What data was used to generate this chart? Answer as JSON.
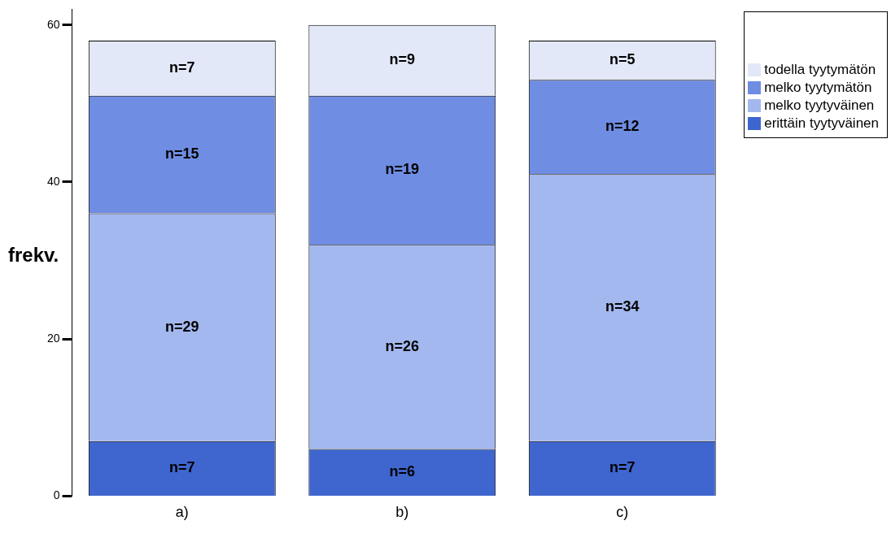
{
  "chart_data": {
    "type": "bar",
    "stacked": true,
    "ylabel": "frekv.",
    "categories": [
      "a)",
      "b)",
      "c)"
    ],
    "series": [
      {
        "name": "erittäin tyytyväinen",
        "color": "#3f66cf",
        "values": [
          7,
          6,
          7
        ],
        "value_labels": [
          "n=7",
          "n=6",
          "n=7"
        ]
      },
      {
        "name": "melko tyytyväinen",
        "color": "#a3b8ee",
        "values": [
          29,
          26,
          34
        ],
        "value_labels": [
          "n=29",
          "n=26",
          "n=34"
        ]
      },
      {
        "name": "melko tyytymätön",
        "color": "#6f8de2",
        "values": [
          15,
          19,
          12
        ],
        "value_labels": [
          "n=15",
          "n=19",
          "n=12"
        ]
      },
      {
        "name": "todella tyytymätön",
        "color": "#e2e8f8",
        "values": [
          7,
          9,
          5
        ],
        "value_labels": [
          "n=7",
          "n=9",
          "n=5"
        ]
      }
    ],
    "ylim": [
      0,
      62
    ],
    "yticks": [
      0,
      20,
      40,
      60
    ],
    "grid": false,
    "legend": "top right"
  }
}
